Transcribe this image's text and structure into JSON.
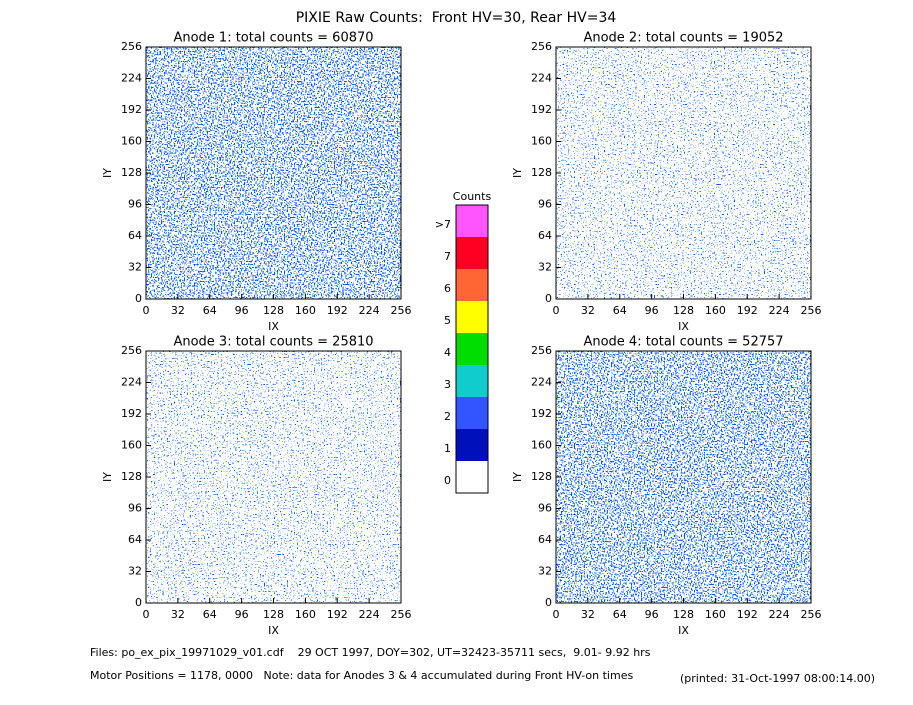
{
  "title": "PIXIE Raw Counts:  Front HV=30, Rear HV=34",
  "chart_data": [
    {
      "type": "heatmap",
      "title": "Anode 1: total counts = 60870",
      "xlabel": "IX",
      "ylabel": "IY",
      "xlim": [
        0,
        256
      ],
      "ylim": [
        0,
        256
      ],
      "xticks": [
        0,
        32,
        64,
        96,
        128,
        160,
        192,
        224,
        256
      ],
      "yticks": [
        0,
        32,
        64,
        96,
        128,
        160,
        192,
        224,
        256
      ]
    },
    {
      "type": "heatmap",
      "title": "Anode 2: total counts = 19052",
      "xlabel": "IX",
      "ylabel": "IY",
      "xlim": [
        0,
        256
      ],
      "ylim": [
        0,
        256
      ],
      "xticks": [
        0,
        32,
        64,
        96,
        128,
        160,
        192,
        224,
        256
      ],
      "yticks": [
        0,
        32,
        64,
        96,
        128,
        160,
        192,
        224,
        256
      ]
    },
    {
      "type": "heatmap",
      "title": "Anode 3: total counts = 25810",
      "xlabel": "IX",
      "ylabel": "IY",
      "xlim": [
        0,
        256
      ],
      "ylim": [
        0,
        256
      ],
      "xticks": [
        0,
        32,
        64,
        96,
        128,
        160,
        192,
        224,
        256
      ],
      "yticks": [
        0,
        32,
        64,
        96,
        128,
        160,
        192,
        224,
        256
      ]
    },
    {
      "type": "heatmap",
      "title": "Anode 4: total counts = 52757",
      "xlabel": "IX",
      "ylabel": "IY",
      "xlim": [
        0,
        256
      ],
      "ylim": [
        0,
        256
      ],
      "xticks": [
        0,
        32,
        64,
        96,
        128,
        160,
        192,
        224,
        256
      ],
      "yticks": [
        0,
        32,
        64,
        96,
        128,
        160,
        192,
        224,
        256
      ]
    }
  ],
  "colorbar": {
    "title": "Counts",
    "labels": [
      ">7",
      "7",
      "6",
      "5",
      "4",
      "3",
      "2",
      "1",
      "0"
    ],
    "colors": [
      "#ff55ff",
      "#ff0022",
      "#ff6633",
      "#ffff00",
      "#00dd00",
      "#11cccc",
      "#3355ff",
      "#0011bb",
      "#ffffff"
    ]
  },
  "footer": {
    "files": "Files: po_ex_pix_19971029_v01.cdf    29 OCT 1997, DOY=302, UT=32423-35711 secs,  9.01- 9.92 hrs",
    "motor": "Motor Positions = 1178, 0000   Note: data for Anodes 3 & 4 accumulated during Front HV-on times",
    "printed": "(printed: 31-Oct-1997 08:00:14.00)"
  }
}
